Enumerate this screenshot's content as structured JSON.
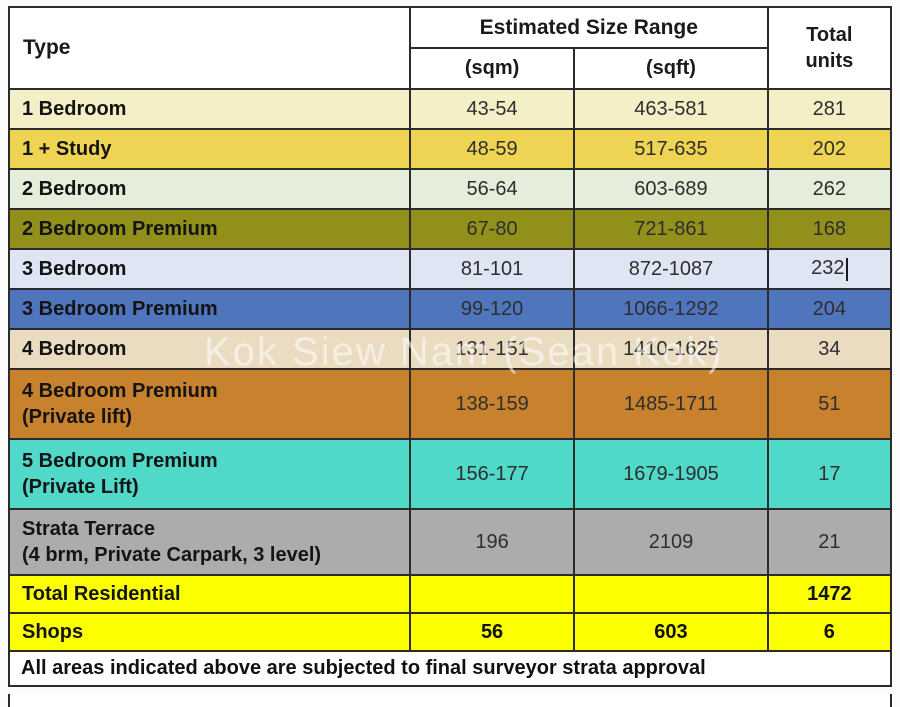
{
  "watermark": "Kok Siew Nam (Sean Kok)",
  "colors": {
    "border": "#2b2b2b",
    "header_bg": "#ffffff",
    "total_rows_bg": "#fbff00"
  },
  "header": {
    "type": "Type",
    "size_range": "Estimated Size Range",
    "sqm": "(sqm)",
    "sqft": "(sqft)",
    "total_line1": "Total",
    "total_line2": "units"
  },
  "rows": [
    {
      "label": "1 Bedroom",
      "label2": "",
      "sqm": "43-54",
      "sqft": "463-581",
      "units": "281",
      "bg": "#f5efc8"
    },
    {
      "label": "1 + Study",
      "label2": "",
      "sqm": "48-59",
      "sqft": "517-635",
      "units": "202",
      "bg": "#efd453"
    },
    {
      "label": "2 Bedroom",
      "label2": "",
      "sqm": "56-64",
      "sqft": "603-689",
      "units": "262",
      "bg": "#e5eddb"
    },
    {
      "label": "2 Bedroom Premium",
      "label2": "",
      "sqm": "67-80",
      "sqft": "721-861",
      "units": "168",
      "bg": "#90901a"
    },
    {
      "label": "3 Bedroom",
      "label2": "",
      "sqm": "81-101",
      "sqft": "872-1087",
      "units": "232",
      "bg": "#dfe5f2"
    },
    {
      "label": "3 Bedroom Premium",
      "label2": "",
      "sqm": "99-120",
      "sqft": "1066-1292",
      "units": "204",
      "bg": "#4f76bd"
    },
    {
      "label": "4 Bedroom",
      "label2": "",
      "sqm": "131-151",
      "sqft": "1410-1625",
      "units": "34",
      "bg": "#e9dcc1"
    },
    {
      "label": "4 Bedroom Premium",
      "label2": "(Private lift)",
      "sqm": "138-159",
      "sqft": "1485-1711",
      "units": "51",
      "bg": "#c8822e"
    },
    {
      "label": "5 Bedroom Premium",
      "label2": "(Private Lift)",
      "sqm": "156-177",
      "sqft": "1679-1905",
      "units": "17",
      "bg": "#50d8c8"
    },
    {
      "label": "Strata Terrace",
      "label2": "(4 brm, Private Carpark, 3 level)",
      "sqm": "196",
      "sqft": "2109",
      "units": "21",
      "bg": "#acacaa"
    },
    {
      "label": "Total Residential",
      "label2": "",
      "sqm": "",
      "sqft": "",
      "units": "1472",
      "bg": "#fbff00"
    },
    {
      "label": "Shops",
      "label2": "",
      "sqm": "56",
      "sqft": "603",
      "units": "6",
      "bg": "#fbff00"
    }
  ],
  "footer_note": "All areas indicated above are subjected to final surveyor strata approval"
}
